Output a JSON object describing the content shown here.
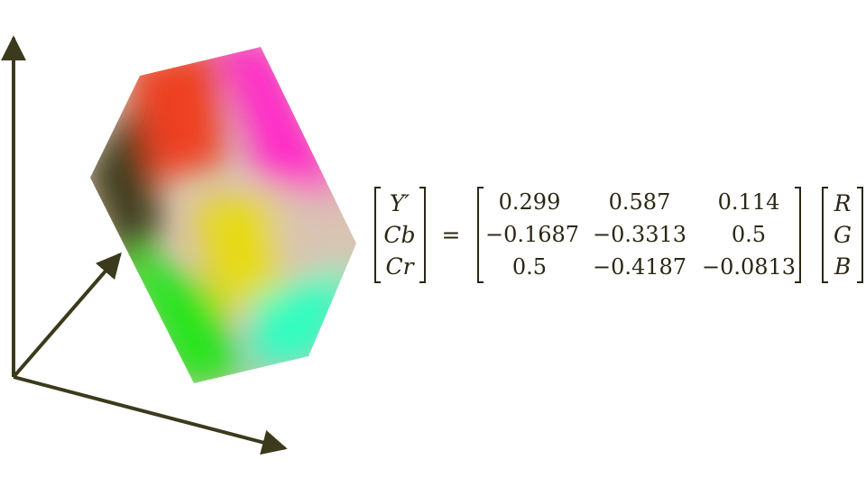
{
  "colors": {
    "axis": "#3b3a1c",
    "black": "#3f3d1c",
    "red": "#ee3f22",
    "magenta": "#ff2bc8",
    "white": "#d9c3b2",
    "yellow": "#e6da12",
    "green": "#25e41d",
    "cyan": "#30fdbf",
    "text": "#2b2714"
  },
  "equation": {
    "lhs": [
      "Y′",
      "Cb",
      "Cr"
    ],
    "equals": "=",
    "matrix": [
      [
        "0.299",
        "0.587",
        "0.114"
      ],
      [
        "−0.1687",
        "−0.3313",
        "0.5"
      ],
      [
        "0.5",
        "−0.4187",
        "−0.0813"
      ]
    ],
    "rhs": [
      "R",
      "G",
      "B"
    ]
  }
}
